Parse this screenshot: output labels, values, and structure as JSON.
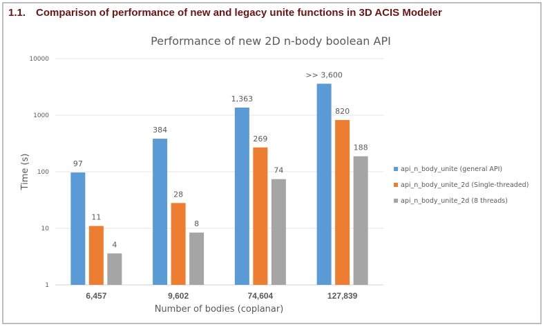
{
  "section": {
    "number": "1.1.",
    "title": "Comparison of performance of new and legacy unite functions in 3D ACIS Modeler"
  },
  "chart_data": {
    "type": "bar",
    "title": "Performance of new 2D n-body boolean API",
    "xlabel": "Number of bodies (coplanar)",
    "ylabel": "Time (s)",
    "yscale": "log",
    "ylim": [
      1,
      10000
    ],
    "yticks": [
      "1",
      "10",
      "100",
      "1000",
      "10000"
    ],
    "categories": [
      "6,457",
      "9,602",
      "74,604",
      "127,839"
    ],
    "grid": true,
    "legend_position": "right",
    "series": [
      {
        "name": "api_n_body_unite (general API)",
        "color": "#5b9bd5",
        "values": [
          97,
          384,
          1363,
          3600
        ],
        "labels": [
          "97",
          "384",
          "1,363",
          ">> 3,600"
        ]
      },
      {
        "name": "api_n_body_unite_2d (Single-threaded)",
        "color": "#ed7d31",
        "values": [
          11,
          28,
          269,
          820
        ],
        "labels": [
          "11",
          "28",
          "269",
          "820"
        ]
      },
      {
        "name": "api_n_body_unite_2d (8 threads)",
        "color": "#a5a5a5",
        "values": [
          3.6,
          8.4,
          74,
          188
        ],
        "labels": [
          "4",
          "8",
          "74",
          "188"
        ]
      }
    ]
  }
}
